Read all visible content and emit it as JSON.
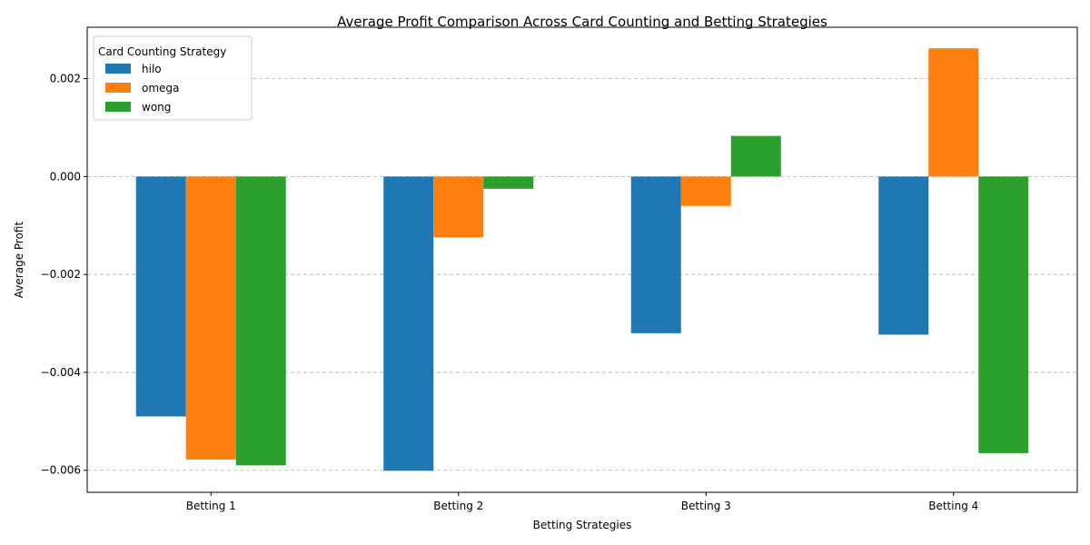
{
  "chart_data": {
    "type": "bar",
    "title": "Average Profit Comparison Across Card Counting and Betting Strategies",
    "xlabel": "Betting Strategies",
    "ylabel": "Average Profit",
    "categories": [
      "Betting 1",
      "Betting 2",
      "Betting 3",
      "Betting 4"
    ],
    "series": [
      {
        "name": "hilo",
        "color": "#1f77b4",
        "values": [
          -0.0049,
          -0.00601,
          -0.0032,
          -0.00323
        ]
      },
      {
        "name": "omega",
        "color": "#ff7f0e",
        "values": [
          -0.00578,
          -0.00124,
          -0.0006,
          0.00262
        ]
      },
      {
        "name": "wong",
        "color": "#2ca02c",
        "values": [
          -0.0059,
          -0.00025,
          0.00083,
          -0.00565
        ]
      }
    ],
    "ylim": [
      -0.00645,
      0.00305
    ],
    "yticks": [
      -0.006,
      -0.004,
      -0.002,
      0.0,
      0.002
    ],
    "ytick_labels": [
      "−0.006",
      "−0.004",
      "−0.002",
      "0.000",
      "0.002"
    ],
    "grid": "y-dashed",
    "legend": {
      "title": "Card Counting Strategy",
      "placement": "top-left"
    }
  }
}
